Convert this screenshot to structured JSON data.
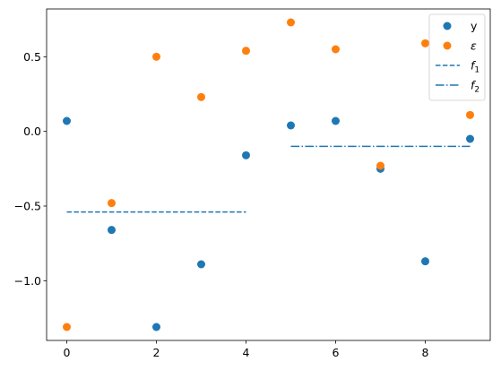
{
  "chart_data": {
    "type": "scatter",
    "x": [
      0,
      1,
      2,
      3,
      4,
      5,
      6,
      7,
      8,
      9
    ],
    "series": [
      {
        "name": "y",
        "kind": "scatter",
        "color": "#1f77b4",
        "x": [
          0,
          1,
          2,
          3,
          4,
          5,
          6,
          7,
          8,
          9
        ],
        "values": [
          0.07,
          -0.66,
          -1.31,
          -0.89,
          -0.16,
          0.04,
          0.07,
          -0.25,
          -0.87,
          -0.05
        ]
      },
      {
        "name": "ε",
        "kind": "scatter",
        "color": "#ff7f0e",
        "x": [
          0,
          1,
          2,
          3,
          4,
          5,
          6,
          7,
          8,
          9
        ],
        "values": [
          -1.31,
          -0.48,
          0.5,
          0.23,
          0.54,
          0.73,
          0.55,
          -0.23,
          0.59,
          0.11
        ]
      },
      {
        "name": "f",
        "subscript": "1",
        "kind": "line",
        "linestyle": "dashed",
        "color": "#1f77b4",
        "x": [
          0,
          4
        ],
        "values": [
          -0.54,
          -0.54
        ]
      },
      {
        "name": "f",
        "subscript": "2",
        "kind": "line",
        "linestyle": "dashdot",
        "color": "#1f77b4",
        "x": [
          5,
          9
        ],
        "values": [
          -0.1,
          -0.1
        ]
      }
    ],
    "xticks": [
      0,
      2,
      4,
      6,
      8
    ],
    "xtick_labels": [
      "0",
      "2",
      "4",
      "6",
      "8"
    ],
    "yticks": [
      -1.0,
      -0.5,
      0.0,
      0.5
    ],
    "ytick_labels": [
      "−1.0",
      "−0.5",
      "0.0",
      "0.5"
    ],
    "xlim": [
      -0.45,
      9.45
    ],
    "ylim": [
      -1.4,
      0.82
    ],
    "title": "",
    "xlabel": "",
    "ylabel": "",
    "grid": false,
    "legend": "top-right"
  }
}
